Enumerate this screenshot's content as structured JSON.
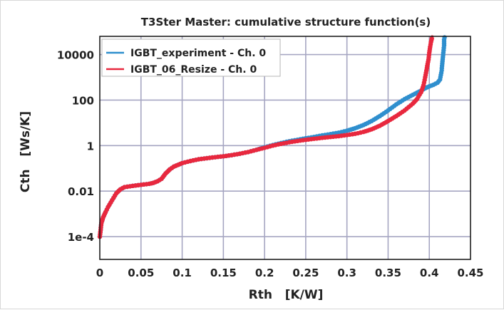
{
  "chart_data": {
    "type": "scatter",
    "title": "T3Ster Master: cumulative structure function(s)",
    "xlabel": "Rth   [K/W]",
    "ylabel": "Cth   [Ws/K]",
    "xlim": [
      0,
      0.45
    ],
    "ylim_log10": [
      -5,
      4.8
    ],
    "y_scale": "log",
    "x_ticks": [
      0,
      0.05,
      0.1,
      0.15,
      0.2,
      0.25,
      0.3,
      0.35,
      0.4,
      0.45
    ],
    "x_tick_labels": [
      "0",
      "0.05",
      "0.1",
      "0.15",
      "0.2",
      "0.25",
      "0.3",
      "0.35",
      "0.4",
      "0.45"
    ],
    "y_ticks": [
      0.0001,
      0.01,
      1,
      100,
      10000
    ],
    "y_tick_labels": [
      "1e-4",
      "0.01",
      "1",
      "100",
      "10000"
    ],
    "grid": true,
    "legend_position": "top-left",
    "series": [
      {
        "name": "IGBT_experiment - Ch. 0",
        "color": "#2f8fce",
        "x": [
          0.0,
          0.001,
          0.002,
          0.004,
          0.007,
          0.01,
          0.015,
          0.02,
          0.025,
          0.03,
          0.04,
          0.05,
          0.06,
          0.065,
          0.07,
          0.075,
          0.08,
          0.085,
          0.09,
          0.1,
          0.11,
          0.12,
          0.13,
          0.14,
          0.15,
          0.16,
          0.17,
          0.18,
          0.19,
          0.2,
          0.21,
          0.22,
          0.23,
          0.24,
          0.25,
          0.26,
          0.27,
          0.28,
          0.29,
          0.3,
          0.31,
          0.32,
          0.33,
          0.34,
          0.35,
          0.36,
          0.37,
          0.38,
          0.39,
          0.395,
          0.4,
          0.405,
          0.41,
          0.413,
          0.415,
          0.416,
          0.417,
          0.418,
          0.418,
          0.419
        ],
        "y": [
          0.0001,
          0.0002,
          0.0004,
          0.0007,
          0.0012,
          0.002,
          0.004,
          0.008,
          0.012,
          0.015,
          0.017,
          0.019,
          0.021,
          0.023,
          0.027,
          0.035,
          0.06,
          0.09,
          0.12,
          0.17,
          0.21,
          0.25,
          0.28,
          0.31,
          0.34,
          0.38,
          0.44,
          0.52,
          0.65,
          0.85,
          1.05,
          1.3,
          1.55,
          1.8,
          2.1,
          2.4,
          2.8,
          3.2,
          3.7,
          4.5,
          5.8,
          8,
          12,
          20,
          35,
          65,
          110,
          170,
          260,
          330,
          400,
          470,
          580,
          800,
          2000,
          5000,
          12000,
          25000,
          45000,
          70000
        ]
      },
      {
        "name": "IGBT_06_Resize - Ch. 0",
        "color": "#e8283e",
        "x": [
          0.0,
          0.001,
          0.002,
          0.004,
          0.007,
          0.01,
          0.015,
          0.02,
          0.025,
          0.03,
          0.04,
          0.05,
          0.06,
          0.065,
          0.07,
          0.075,
          0.08,
          0.085,
          0.09,
          0.1,
          0.11,
          0.12,
          0.13,
          0.14,
          0.15,
          0.16,
          0.17,
          0.18,
          0.19,
          0.2,
          0.21,
          0.22,
          0.23,
          0.24,
          0.25,
          0.26,
          0.27,
          0.28,
          0.29,
          0.3,
          0.31,
          0.32,
          0.33,
          0.34,
          0.35,
          0.36,
          0.37,
          0.38,
          0.385,
          0.39,
          0.393,
          0.395,
          0.397,
          0.399,
          0.4,
          0.401,
          0.402,
          0.403,
          0.404
        ],
        "y": [
          0.0001,
          0.0002,
          0.0004,
          0.0007,
          0.0012,
          0.002,
          0.004,
          0.008,
          0.012,
          0.015,
          0.017,
          0.019,
          0.021,
          0.023,
          0.027,
          0.035,
          0.06,
          0.09,
          0.12,
          0.17,
          0.21,
          0.25,
          0.28,
          0.31,
          0.34,
          0.38,
          0.44,
          0.52,
          0.65,
          0.8,
          1.0,
          1.2,
          1.4,
          1.6,
          1.8,
          2.0,
          2.2,
          2.4,
          2.6,
          2.9,
          3.3,
          4.0,
          5.2,
          7.5,
          12,
          20,
          35,
          70,
          110,
          220,
          450,
          1000,
          2500,
          6000,
          12000,
          22000,
          35000,
          50000,
          70000
        ]
      }
    ]
  }
}
